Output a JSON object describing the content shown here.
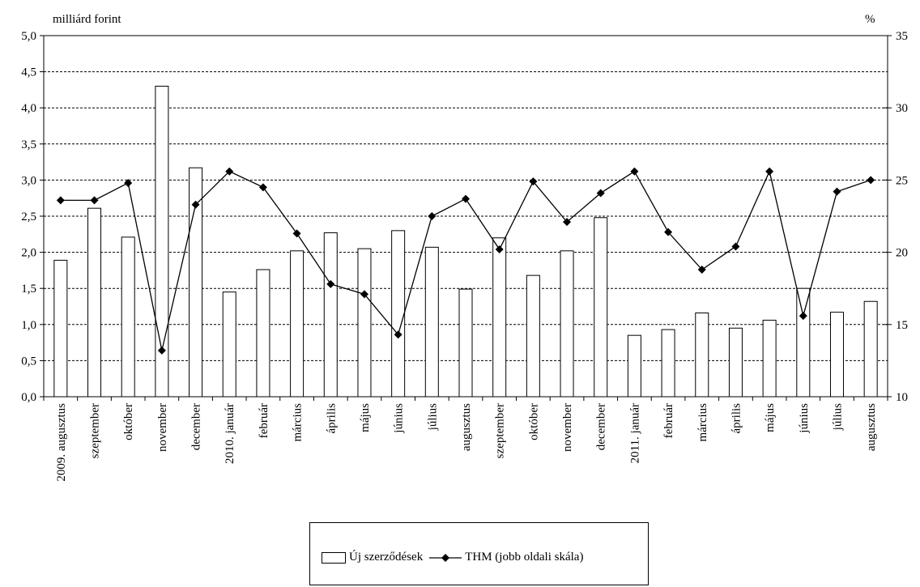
{
  "chart_data": {
    "type": "bar+line",
    "left_axis_label": "milliárd forint",
    "right_axis_label": "%",
    "left_ylim": [
      0,
      5
    ],
    "right_ylim": [
      10,
      35
    ],
    "left_ticks": [
      "0,0",
      "0,5",
      "1,0",
      "1,5",
      "2,0",
      "2,5",
      "3,0",
      "3,5",
      "4,0",
      "4,5",
      "5,0"
    ],
    "right_ticks": [
      "10",
      "15",
      "20",
      "25",
      "30",
      "35"
    ],
    "grid": "horizontal dashed",
    "legend_position": "bottom-center",
    "categories": [
      "2009. augusztus",
      "szeptember",
      "október",
      "november",
      "december",
      "2010. január",
      "február",
      "március",
      "április",
      "május",
      "június",
      "július",
      "augusztus",
      "szeptember",
      "október",
      "november",
      "december",
      "2011. január",
      "február",
      "március",
      "április",
      "május",
      "június",
      "július",
      "augusztus"
    ],
    "series": [
      {
        "name": "Új szerződések",
        "type": "bar",
        "axis": "left",
        "values": [
          1.89,
          2.61,
          2.21,
          4.3,
          3.17,
          1.45,
          1.76,
          2.02,
          2.27,
          2.05,
          2.3,
          2.07,
          1.49,
          2.2,
          1.68,
          2.02,
          2.48,
          0.85,
          0.93,
          1.16,
          0.95,
          1.06,
          1.5,
          1.17,
          1.32
        ]
      },
      {
        "name": "THM (jobb oldali skála)",
        "type": "line",
        "axis": "right",
        "marker": "diamond",
        "values": [
          23.6,
          23.6,
          24.8,
          13.2,
          23.3,
          25.6,
          24.5,
          21.3,
          17.8,
          17.1,
          14.3,
          22.5,
          23.7,
          20.2,
          24.9,
          22.1,
          24.1,
          25.6,
          21.4,
          18.8,
          20.4,
          25.6,
          15.6,
          24.2,
          25.0
        ]
      }
    ]
  }
}
